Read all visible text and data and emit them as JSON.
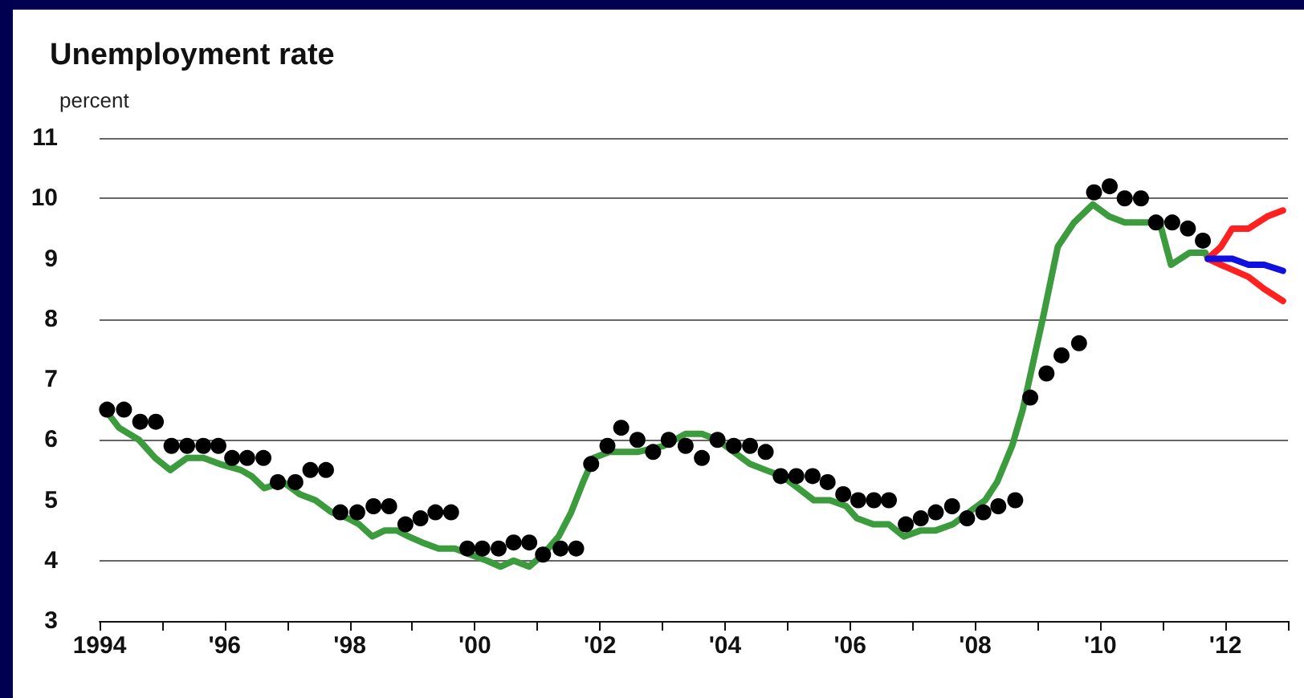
{
  "chart_data": {
    "type": "line",
    "title": "Unemployment rate",
    "ylabel": "percent",
    "xlim": [
      1994,
      2013
    ],
    "ylim": [
      3,
      11
    ],
    "yticks": [
      3,
      4,
      5,
      6,
      7,
      8,
      9,
      10,
      11
    ],
    "xticks": [
      {
        "value": 1994,
        "label": "1994"
      },
      {
        "value": 1995,
        "label": null
      },
      {
        "value": 1996,
        "label": "'96"
      },
      {
        "value": 1997,
        "label": null
      },
      {
        "value": 1998,
        "label": "'98"
      },
      {
        "value": 1999,
        "label": null
      },
      {
        "value": 2000,
        "label": "'00"
      },
      {
        "value": 2001,
        "label": null
      },
      {
        "value": 2002,
        "label": "'02"
      },
      {
        "value": 2003,
        "label": null
      },
      {
        "value": 2004,
        "label": "'04"
      },
      {
        "value": 2005,
        "label": null
      },
      {
        "value": 2006,
        "label": "'06"
      },
      {
        "value": 2007,
        "label": null
      },
      {
        "value": 2008,
        "label": "'08"
      },
      {
        "value": 2009,
        "label": null
      },
      {
        "value": 2010,
        "label": "'10"
      },
      {
        "value": 2011,
        "label": null
      },
      {
        "value": 2012,
        "label": "'12"
      },
      {
        "value": 2013,
        "label": null
      }
    ],
    "grid": "y",
    "marker": "none",
    "series": [
      {
        "color": "#3c9b3c",
        "x": [
          1994.09,
          1994.31,
          1994.63,
          1994.89,
          1995.13,
          1995.4,
          1995.66,
          1995.92,
          1996.26,
          1996.43,
          1996.63,
          1996.94,
          1997.2,
          1997.45,
          1997.71,
          1997.97,
          1998.15,
          1998.36,
          1998.56,
          1998.75,
          1998.94,
          1999.16,
          1999.42,
          1999.68,
          1999.93,
          2000.19,
          2000.41,
          2000.62,
          2000.87,
          2001.09,
          2001.34,
          2001.54,
          2001.73,
          2001.9,
          2002.15,
          2002.37,
          2002.6,
          2003.02,
          2003.37,
          2003.63,
          2003.88,
          2004.14,
          2004.4,
          2004.65,
          2004.91,
          2005.17,
          2005.42,
          2005.68,
          2005.94,
          2006.11,
          2006.37,
          2006.62,
          2006.86,
          2007.13,
          2007.37,
          2007.64,
          2007.9,
          2008.16,
          2008.35,
          2008.59,
          2008.76,
          2008.93,
          2009.1,
          2009.32,
          2009.58,
          2009.88,
          2010.14,
          2010.39,
          2010.69,
          2010.95,
          2011.13,
          2011.43,
          2011.68,
          2011.72
        ],
        "values": [
          6.5,
          6.2,
          6.0,
          5.7,
          5.5,
          5.7,
          5.7,
          5.6,
          5.5,
          5.4,
          5.2,
          5.3,
          5.1,
          5.0,
          4.8,
          4.7,
          4.6,
          4.4,
          4.5,
          4.5,
          4.4,
          4.3,
          4.2,
          4.2,
          4.1,
          4.0,
          3.9,
          4.0,
          3.9,
          4.1,
          4.4,
          4.8,
          5.3,
          5.7,
          5.8,
          5.8,
          5.8,
          5.9,
          6.1,
          6.1,
          6.0,
          5.8,
          5.6,
          5.5,
          5.4,
          5.2,
          5.0,
          5.0,
          4.9,
          4.7,
          4.6,
          4.6,
          4.4,
          4.5,
          4.5,
          4.6,
          4.8,
          5.0,
          5.3,
          5.9,
          6.5,
          7.3,
          8.1,
          9.2,
          9.6,
          9.9,
          9.7,
          9.6,
          9.6,
          9.6,
          8.9,
          9.1,
          9.1,
          9.0
        ]
      },
      {
        "type": "scatter",
        "marker": "circle",
        "color": "#000000",
        "x": [
          1994.12,
          1994.39,
          1994.65,
          1994.9,
          1995.15,
          1995.4,
          1995.66,
          1995.9,
          1996.12,
          1996.36,
          1996.62,
          1996.85,
          1997.13,
          1997.37,
          1997.62,
          1997.85,
          1998.12,
          1998.38,
          1998.63,
          1998.89,
          1999.13,
          1999.37,
          1999.62,
          1999.88,
          2000.12,
          2000.38,
          2000.62,
          2000.87,
          2001.09,
          2001.37,
          2001.62,
          2001.86,
          2002.12,
          2002.34,
          2002.6,
          2002.85,
          2003.1,
          2003.37,
          2003.63,
          2003.88,
          2004.14,
          2004.4,
          2004.65,
          2004.89,
          2005.14,
          2005.4,
          2005.64,
          2005.89,
          2006.13,
          2006.38,
          2006.62,
          2006.89,
          2007.13,
          2007.37,
          2007.63,
          2007.87,
          2008.13,
          2008.37,
          2008.64,
          2008.88,
          2009.14,
          2009.38,
          2009.66,
          2009.9,
          2010.15,
          2010.39,
          2010.65,
          2010.89,
          2011.15,
          2011.4,
          2011.64
        ],
        "values": [
          6.5,
          6.5,
          6.3,
          6.3,
          5.9,
          5.9,
          5.9,
          5.9,
          5.7,
          5.7,
          5.7,
          5.3,
          5.3,
          5.5,
          5.5,
          4.8,
          4.8,
          4.9,
          4.9,
          4.6,
          4.7,
          4.8,
          4.8,
          4.2,
          4.2,
          4.2,
          4.3,
          4.3,
          4.1,
          4.2,
          4.2,
          5.6,
          5.9,
          6.2,
          6.0,
          5.8,
          6.0,
          5.9,
          5.7,
          6.0,
          5.9,
          5.9,
          5.8,
          5.4,
          5.4,
          5.4,
          5.3,
          5.1,
          5.0,
          5.0,
          5.0,
          4.6,
          4.7,
          4.8,
          4.9,
          4.7,
          4.8,
          4.9,
          5.0,
          6.7,
          7.1,
          7.4,
          7.6,
          10.1,
          10.2,
          10.0,
          10.0,
          9.6,
          9.6,
          9.5,
          9.3
        ]
      },
      {
        "color": "#ff2020",
        "x": [
          2011.72,
          2011.93,
          2012.11,
          2012.37,
          2012.67,
          2012.92
        ],
        "values": [
          9.0,
          9.2,
          9.5,
          9.5,
          9.7,
          9.8
        ]
      },
      {
        "color": "#ff2020",
        "x": [
          2011.72,
          2011.93,
          2012.37,
          2012.62,
          2012.92
        ],
        "values": [
          9.0,
          8.9,
          8.7,
          8.5,
          8.3
        ]
      },
      {
        "color": "#1010e0",
        "x": [
          2011.72,
          2012.11,
          2012.37,
          2012.62,
          2012.92
        ],
        "values": [
          9.0,
          9.0,
          8.9,
          8.9,
          8.8
        ]
      }
    ]
  }
}
